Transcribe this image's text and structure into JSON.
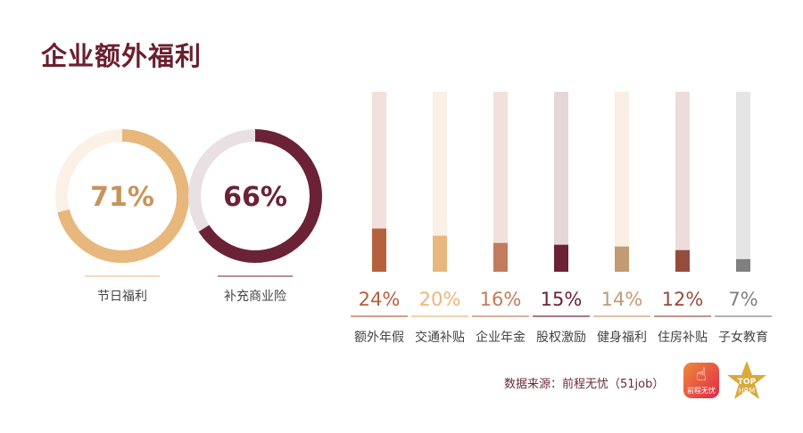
{
  "title": "企业额外福利",
  "colors": {
    "title": "#6b1f2f"
  },
  "chart_data": [
    {
      "type": "pie",
      "variant": "donut",
      "items": [
        {
          "label": "节日福利",
          "value": 71,
          "display": "71%",
          "color": "#e8b77c",
          "track": "#fbf1e6",
          "text": "#c9935a"
        },
        {
          "label": "补充商业险",
          "value": 66,
          "display": "66%",
          "color": "#6b2236",
          "track": "#e9e0e3",
          "text": "#6b2236"
        }
      ]
    },
    {
      "type": "bar",
      "ylim": [
        0,
        100
      ],
      "categories": [
        "额外年假",
        "交通补贴",
        "企业年金",
        "股权激励",
        "健身福利",
        "住房补贴",
        "子女教育"
      ],
      "values": [
        24,
        20,
        16,
        15,
        14,
        12,
        7
      ],
      "labels": [
        "24%",
        "20%",
        "16%",
        "15%",
        "14%",
        "12%",
        "7%"
      ],
      "colors": [
        "#b5613d",
        "#e8b77c",
        "#c27b5c",
        "#6b2236",
        "#c49a72",
        "#944c3d",
        "#808080"
      ],
      "tracks": [
        "#f1e0dc",
        "#faf0e6",
        "#f1e0dc",
        "#e5d6da",
        "#f8eee4",
        "#eddcdc",
        "#e5e5e5"
      ]
    }
  ],
  "source": "数据来源：前程无忧（51job）",
  "logos": {
    "a": "前程无忧",
    "b": "TOP HRM"
  }
}
